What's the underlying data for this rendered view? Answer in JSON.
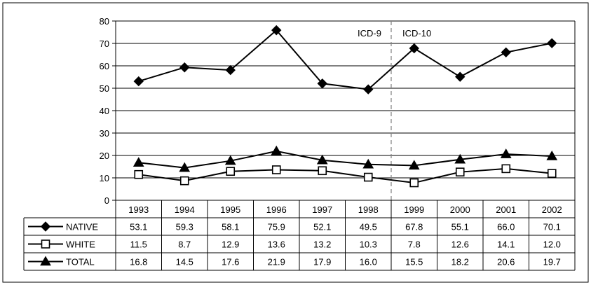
{
  "chart_data": {
    "type": "line",
    "title": "",
    "xlabel": "",
    "ylabel": "",
    "ylim": [
      0,
      80
    ],
    "yticks": [
      0,
      10,
      20,
      30,
      40,
      50,
      60,
      70,
      80
    ],
    "grid": true,
    "categories": [
      "1993",
      "1994",
      "1995",
      "1996",
      "1997",
      "1998",
      "1999",
      "2000",
      "2001",
      "2002"
    ],
    "series": [
      {
        "name": "NATIVE",
        "marker": "diamond",
        "values": [
          53.1,
          59.3,
          58.1,
          75.9,
          52.1,
          49.5,
          67.8,
          55.1,
          66.0,
          70.1
        ],
        "labels": [
          "53.1",
          "59.3",
          "58.1",
          "75.9",
          "52.1",
          "49.5",
          "67.8",
          "55.1",
          "66.0",
          "70.1"
        ]
      },
      {
        "name": "WHITE",
        "marker": "open-square",
        "values": [
          11.5,
          8.7,
          12.9,
          13.6,
          13.2,
          10.3,
          7.8,
          12.6,
          14.1,
          12.0
        ],
        "labels": [
          "11.5",
          "8.7",
          "12.9",
          "13.6",
          "13.2",
          "10.3",
          "7.8",
          "12.6",
          "14.1",
          "12.0"
        ]
      },
      {
        "name": "TOTAL",
        "marker": "triangle",
        "values": [
          16.8,
          14.5,
          17.6,
          21.9,
          17.9,
          16.0,
          15.5,
          18.2,
          20.6,
          19.7
        ],
        "labels": [
          "16.8",
          "14.5",
          "17.6",
          "21.9",
          "17.9",
          "16.0",
          "15.5",
          "18.2",
          "20.6",
          "19.7"
        ]
      }
    ],
    "annotations": [
      {
        "text": "ICD-9",
        "position": "left of divider"
      },
      {
        "text": "ICD-10",
        "position": "right of divider"
      }
    ],
    "divider_between": [
      "1998",
      "1999"
    ],
    "legend": "data table below chart",
    "colors": {
      "line": "#000000",
      "grid": "#000000",
      "divider": "#808080"
    }
  }
}
